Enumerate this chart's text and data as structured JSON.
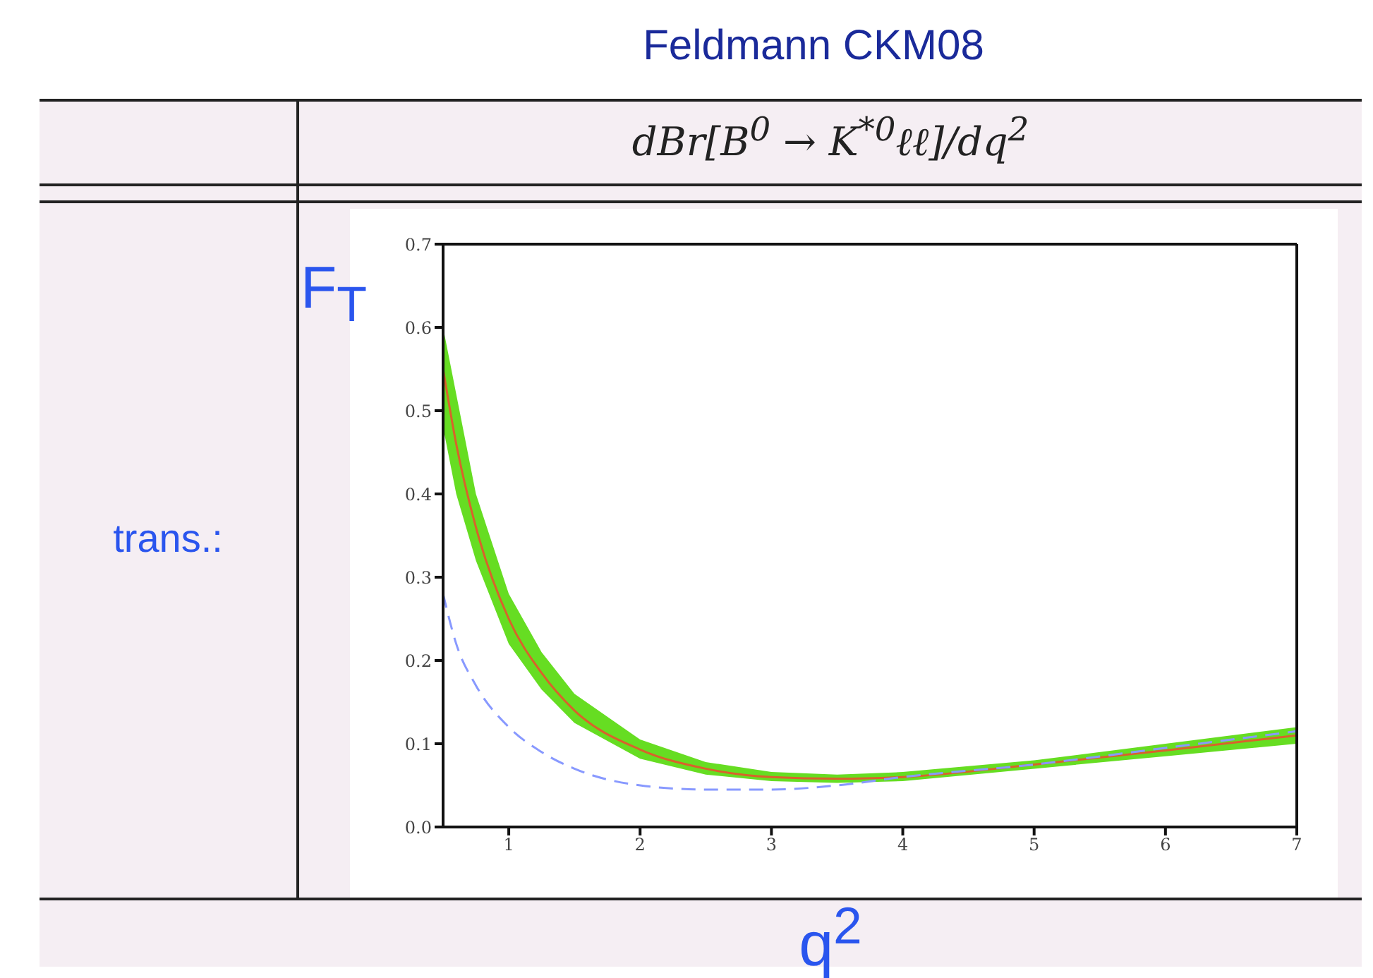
{
  "chart_data": {
    "type": "line",
    "title": "Feldmann CKM08",
    "xlabel": "q$^{2}$",
    "ylabel": "F$_{T}$",
    "annotations": [
      "dBr[B$^{0}$ → K$^{*0}$ℓℓ]/dq$^{2}$",
      "trans.:"
    ],
    "x": [
      0.5,
      0.6,
      0.75,
      1,
      1.25,
      1.5,
      2,
      2.5,
      3,
      3.5,
      4,
      5,
      6,
      7
    ],
    "series": [
      {
        "color": "#d9622b",
        "line_style": "solid",
        "values": [
          0.55,
          0.46,
          0.36,
          0.25,
          0.185,
          0.14,
          0.093,
          0.07,
          0.06,
          0.058,
          0.06,
          0.075,
          0.092,
          0.11
        ],
        "lower": [
          0.48,
          0.4,
          0.32,
          0.22,
          0.165,
          0.125,
          0.082,
          0.063,
          0.055,
          0.053,
          0.055,
          0.07,
          0.085,
          0.1
        ],
        "upper": [
          0.6,
          0.52,
          0.4,
          0.28,
          0.21,
          0.16,
          0.105,
          0.078,
          0.066,
          0.063,
          0.066,
          0.08,
          0.1,
          0.12
        ]
      },
      {
        "color": "#8899ff",
        "line_style": "dashed",
        "values": [
          0.28,
          0.22,
          0.17,
          0.12,
          0.09,
          0.07,
          0.05,
          0.045,
          0.045,
          0.05,
          0.06,
          0.075,
          0.095,
          0.115
        ]
      }
    ],
    "xlim": [
      0.5,
      7
    ],
    "xticks": [
      1,
      2,
      3,
      4,
      5,
      6,
      7
    ],
    "ylim": [
      0,
      0.7
    ],
    "yticks": [
      {
        "value": 0,
        "label": "0.0"
      },
      {
        "value": 0.1,
        "label": "0.1"
      },
      {
        "value": 0.2,
        "label": "0.2"
      },
      {
        "value": 0.3,
        "label": "0.3"
      },
      {
        "value": 0.4,
        "label": "0.4"
      },
      {
        "value": 0.5,
        "label": "0.5"
      },
      {
        "value": 0.6,
        "label": "0.6"
      },
      {
        "value": 0.7,
        "label": "0.7"
      }
    ],
    "grid": false,
    "legend": false,
    "marker": "none"
  }
}
